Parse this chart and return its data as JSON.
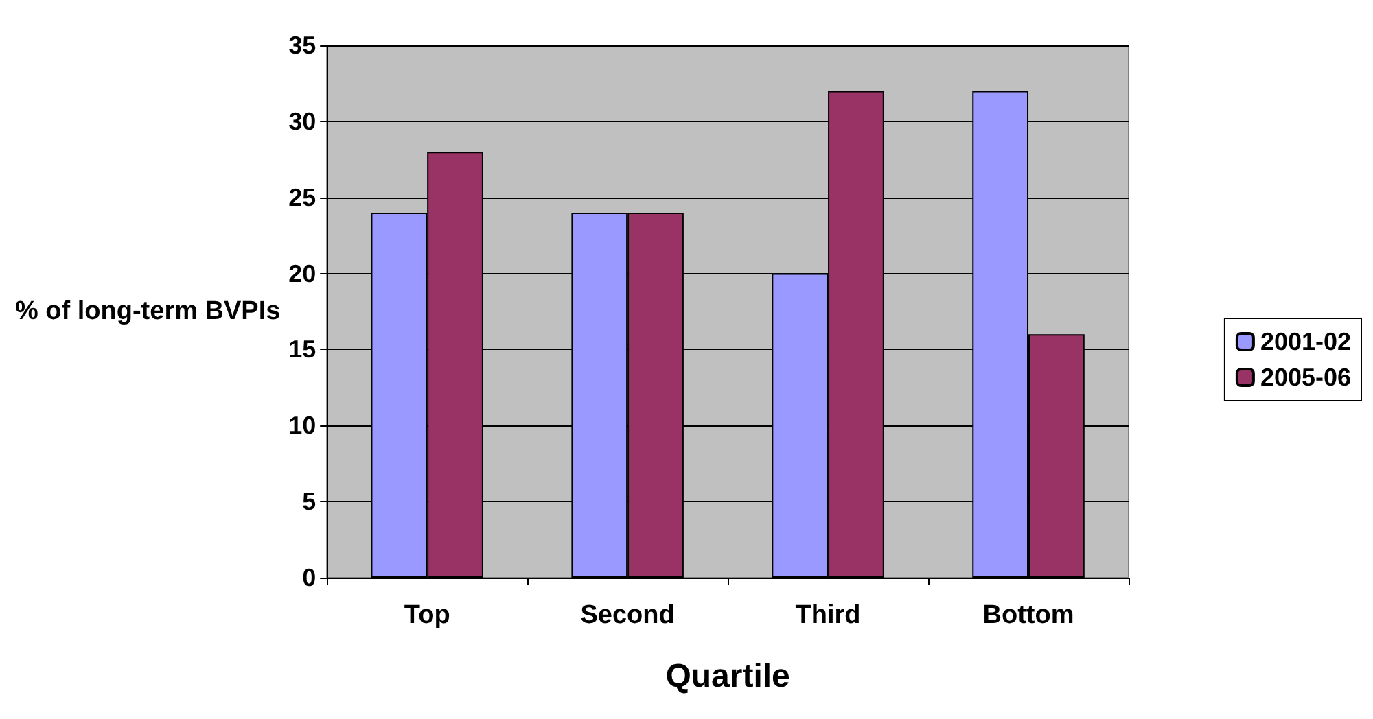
{
  "chart_data": {
    "type": "bar",
    "xlabel": "Quartile",
    "ylabel": "% of long-term BVPIs",
    "categories": [
      "Top",
      "Second",
      "Third",
      "Bottom"
    ],
    "series": [
      {
        "name": "2001-02",
        "color": "#9999ff",
        "values": [
          24,
          24,
          20,
          32
        ]
      },
      {
        "name": "2005-06",
        "color": "#993366",
        "values": [
          28,
          24,
          32,
          16
        ]
      }
    ],
    "ylim": [
      0,
      35
    ],
    "yticks": [
      0,
      5,
      10,
      15,
      20,
      25,
      30,
      35
    ],
    "grid": "y",
    "legend": "right"
  }
}
